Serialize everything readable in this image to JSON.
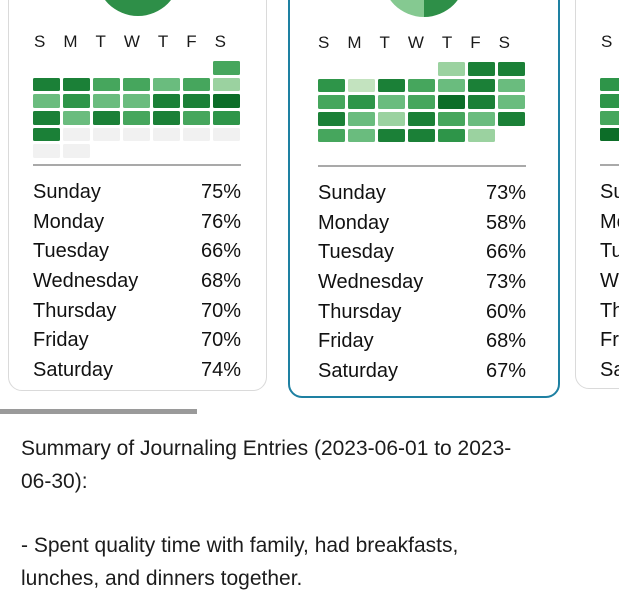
{
  "palette": {
    "levels": [
      "#f1f1f1",
      "#c3e3bf",
      "#9bd2a0",
      "#6abc7e",
      "#46a65d",
      "#2e9549",
      "#1b8037",
      "#0c6d28"
    ],
    "pie_dark": "#2e8f48",
    "pie_light": "#85c991",
    "selected_border": "#1e80a2",
    "card_border": "#dadada",
    "divider": "#9a9a9a"
  },
  "weekday_header": [
    "S",
    "M",
    "T",
    "W",
    "T",
    "F",
    "S"
  ],
  "cards": [
    {
      "name": "month-card-left",
      "selected": false,
      "pie": {
        "split": false
      },
      "grid": [
        [
          null,
          null,
          null,
          null,
          null,
          null,
          4
        ],
        [
          6,
          6,
          4,
          4,
          3,
          4,
          2
        ],
        [
          3,
          5,
          3,
          3,
          6,
          6,
          7
        ],
        [
          6,
          3,
          6,
          4,
          6,
          4,
          5
        ],
        [
          6,
          0,
          0,
          0,
          0,
          0,
          0
        ],
        [
          0,
          0,
          null,
          null,
          null,
          null,
          null
        ]
      ],
      "stats": [
        {
          "day": "Sunday",
          "pct": "75%"
        },
        {
          "day": "Monday",
          "pct": "76%"
        },
        {
          "day": "Tuesday",
          "pct": "66%"
        },
        {
          "day": "Wednesday",
          "pct": "68%"
        },
        {
          "day": "Thursday",
          "pct": "70%"
        },
        {
          "day": "Friday",
          "pct": "70%"
        },
        {
          "day": "Saturday",
          "pct": "74%"
        }
      ]
    },
    {
      "name": "month-card-selected",
      "selected": true,
      "pie": {
        "split": true
      },
      "grid": [
        [
          null,
          null,
          null,
          null,
          2,
          6,
          6
        ],
        [
          5,
          1,
          6,
          4,
          3,
          6,
          3
        ],
        [
          4,
          5,
          3,
          4,
          7,
          6,
          3
        ],
        [
          6,
          3,
          2,
          6,
          4,
          3,
          6
        ],
        [
          4,
          3,
          6,
          6,
          5,
          2,
          null
        ],
        [
          null,
          null,
          null,
          null,
          null,
          null,
          null
        ]
      ],
      "stats": [
        {
          "day": "Sunday",
          "pct": "73%"
        },
        {
          "day": "Monday",
          "pct": "58%"
        },
        {
          "day": "Tuesday",
          "pct": "66%"
        },
        {
          "day": "Wednesday",
          "pct": "73%"
        },
        {
          "day": "Thursday",
          "pct": "60%"
        },
        {
          "day": "Friday",
          "pct": "68%"
        },
        {
          "day": "Saturday",
          "pct": "67%"
        }
      ]
    },
    {
      "name": "month-card-right",
      "selected": false,
      "pie": {
        "split": false
      },
      "grid": [
        [
          null,
          null,
          null,
          null,
          null,
          null,
          null
        ],
        [
          5,
          null,
          null,
          null,
          null,
          null,
          null
        ],
        [
          5,
          null,
          null,
          null,
          null,
          null,
          null
        ],
        [
          4,
          null,
          null,
          null,
          null,
          null,
          null
        ],
        [
          7,
          null,
          null,
          null,
          null,
          null,
          null
        ],
        [
          null,
          null,
          null,
          null,
          null,
          null,
          null
        ]
      ],
      "stats": [
        {
          "day": "Sunday",
          "pct": ""
        },
        {
          "day": "Monday",
          "pct": ""
        },
        {
          "day": "Tuesday",
          "pct": ""
        },
        {
          "day": "Wednesday",
          "pct": ""
        },
        {
          "day": "Thursday",
          "pct": ""
        },
        {
          "day": "Friday",
          "pct": ""
        },
        {
          "day": "Saturday",
          "pct": ""
        }
      ]
    }
  ],
  "summary": {
    "heading_lines": [
      "Summary of Journaling Entries (2023-06-01 to 2023-",
      "06-30):"
    ],
    "bullet_lines": [
      "- Spent quality time with family, had breakfasts,",
      "lunches, and dinners together."
    ]
  }
}
